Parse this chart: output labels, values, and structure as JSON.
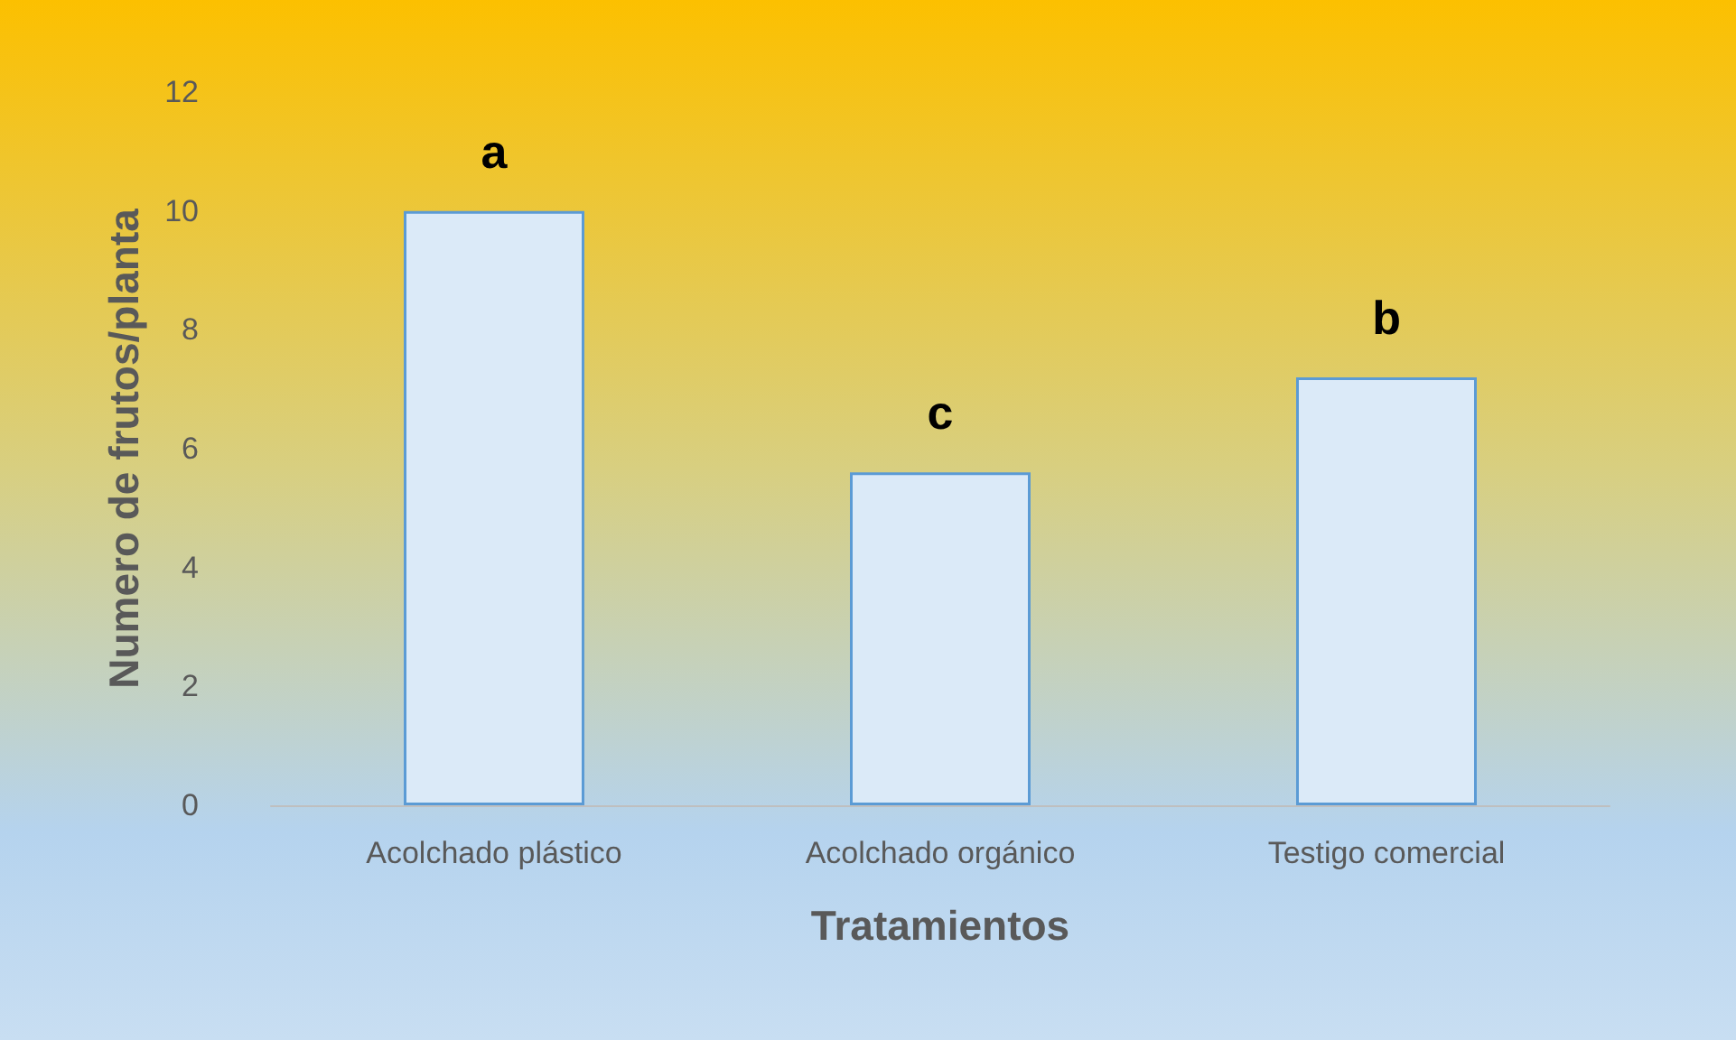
{
  "chart_data": {
    "type": "bar",
    "xlabel": "Tratamientos",
    "ylabel": "Numero de frutos/planta",
    "categories": [
      "Acolchado plástico",
      "Acolchado orgánico",
      "Testigo comercial"
    ],
    "values": [
      10,
      5.6,
      7.2
    ],
    "color": "#dbeaf8",
    "ylim": [
      0,
      12
    ],
    "yticks": [
      0,
      2,
      4,
      6,
      8,
      10,
      12
    ],
    "grid": false,
    "annotations": [
      {
        "text": "a",
        "x": "Acolchado plástico",
        "y": 10
      },
      {
        "text": "c",
        "x": "Acolchado orgánico",
        "y": 5.6
      },
      {
        "text": "b",
        "x": "Testigo comercial",
        "y": 7.2
      }
    ]
  }
}
